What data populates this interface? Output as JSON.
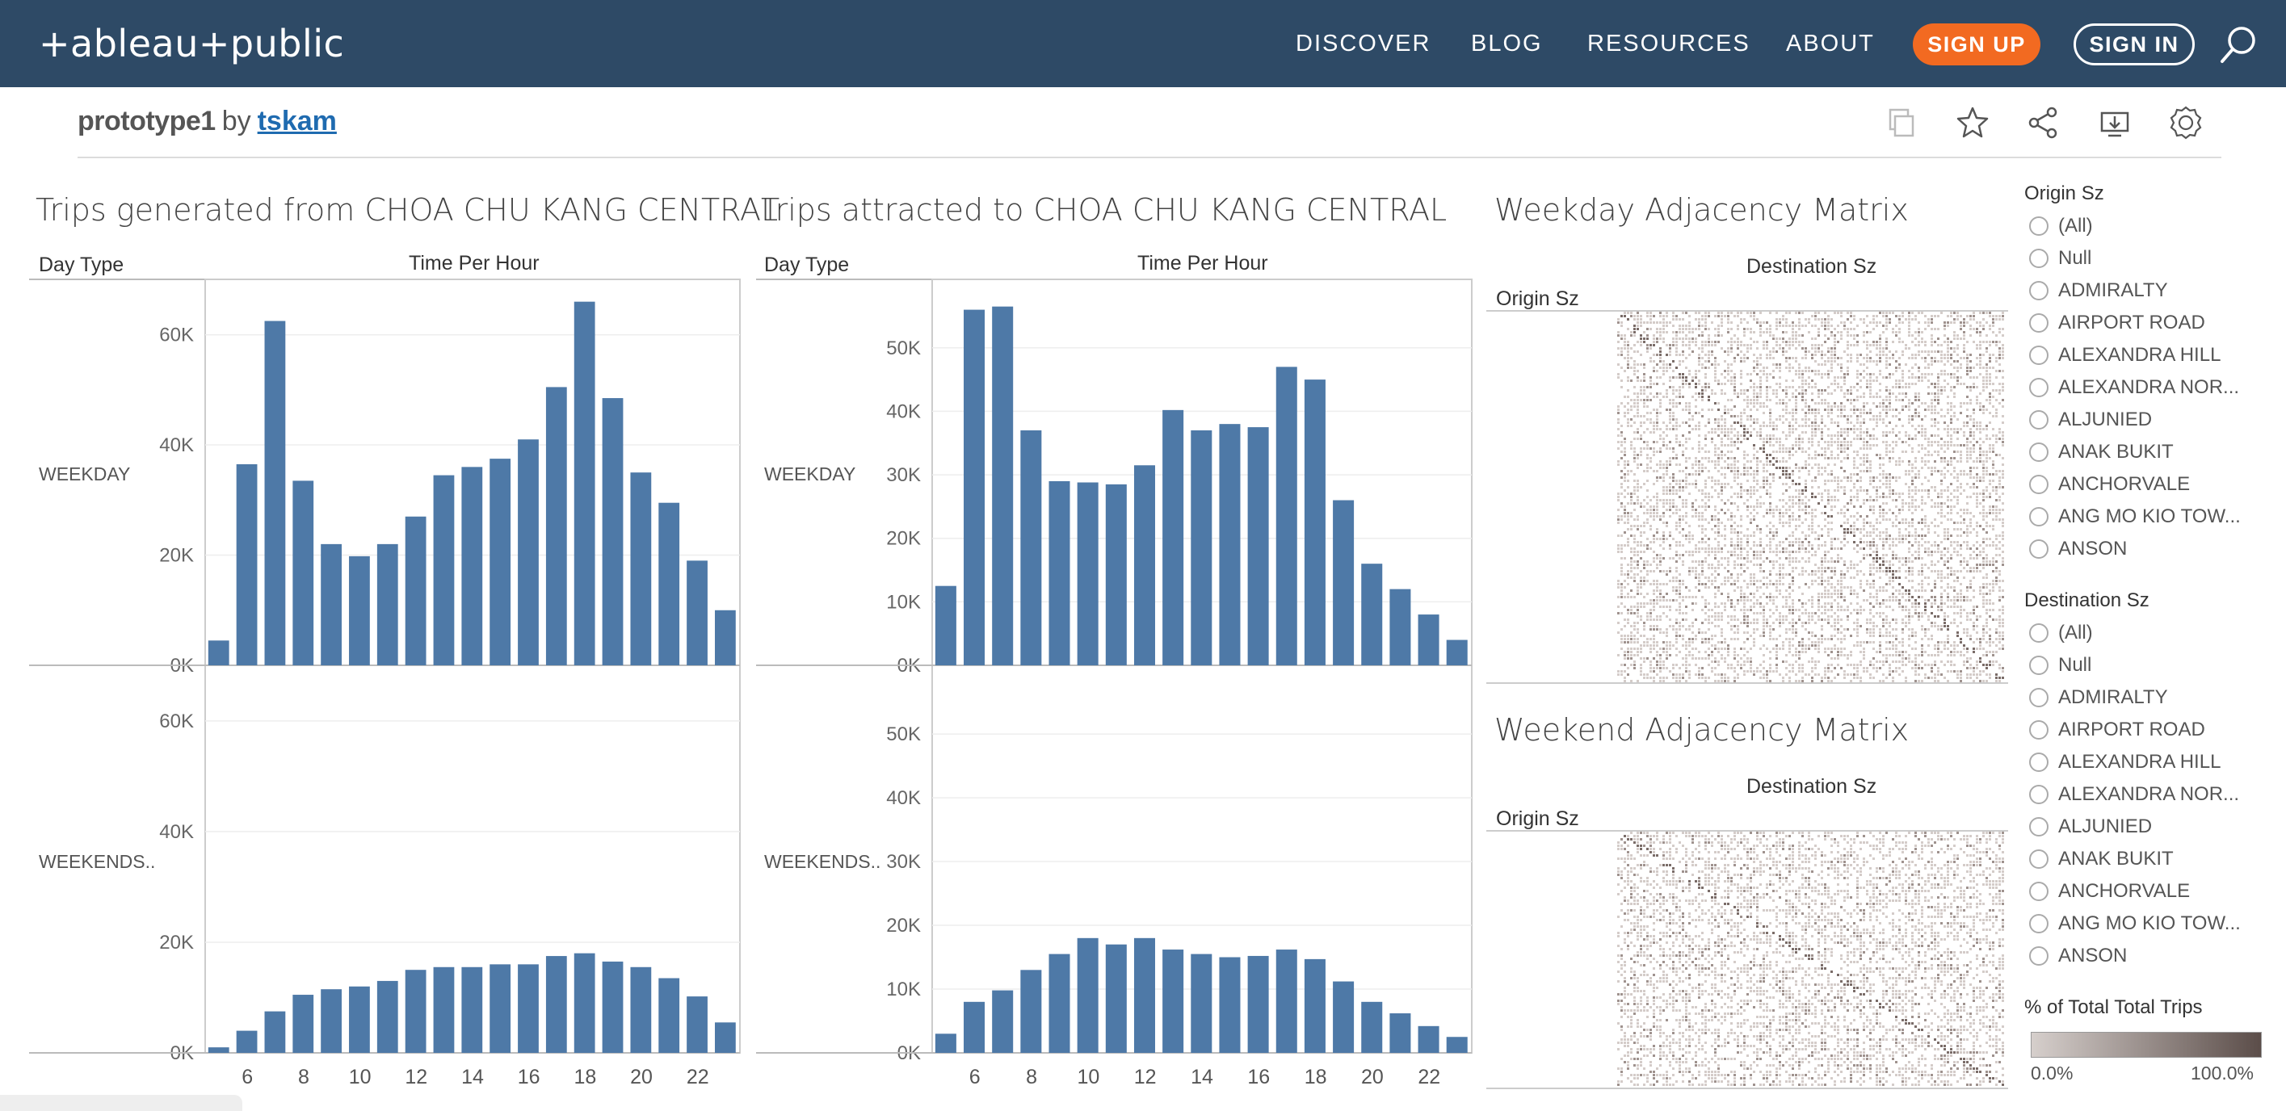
{
  "header": {
    "logo": "+ableau+public",
    "nav": [
      "DISCOVER",
      "BLOG",
      "RESOURCES",
      "ABOUT"
    ],
    "signup_label": "SIGN UP",
    "signin_label": "SIGN IN",
    "colors": {
      "bar_bg": "#2e4a66",
      "signup": "#f26a21"
    }
  },
  "viz": {
    "name": "prototype1",
    "by": "by",
    "author": "tskam"
  },
  "toolbar_icons": [
    "copy-icon",
    "star-icon",
    "share-icon",
    "download-icon",
    "badge-icon"
  ],
  "sheets": {
    "generated_title": "Trips generated from CHOA CHU KANG CENTRAL",
    "attracted_title": "Trips attracted to CHOA CHU KANG CENTRAL",
    "weekday_matrix_title": "Weekday Adjacency Matrix",
    "weekend_matrix_title": "Weekend Adjacency Matrix",
    "day_type_label": "Day Type",
    "time_label": "Time Per Hour",
    "destination_label": "Destination Sz",
    "origin_label": "Origin Sz",
    "weekday_row": "WEEKDAY",
    "weekend_row": "WEEKENDS.."
  },
  "chart_data": [
    {
      "type": "bar",
      "title": "Trips generated from CHOA CHU KANG CENTRAL",
      "xlabel": "Time Per Hour",
      "ylabel": "Day Type",
      "x": [
        5,
        6,
        7,
        8,
        9,
        10,
        11,
        12,
        13,
        14,
        15,
        16,
        17,
        18,
        19,
        20,
        21,
        22,
        23
      ],
      "x_ticks": [
        "6",
        "8",
        "10",
        "12",
        "14",
        "16",
        "18",
        "20",
        "22"
      ],
      "ylim": [
        0,
        68000
      ],
      "y_ticks": [
        "0K",
        "20K",
        "40K",
        "60K"
      ],
      "series": [
        {
          "name": "WEEKDAY",
          "values": [
            4500,
            36500,
            62500,
            33500,
            22000,
            19800,
            22000,
            27000,
            34500,
            36000,
            37500,
            41000,
            50500,
            66000,
            48500,
            35000,
            29500,
            19000,
            10000
          ]
        },
        {
          "name": "WEEKENDS..",
          "values": [
            1000,
            4000,
            7500,
            10500,
            11500,
            12000,
            13000,
            15000,
            15500,
            15500,
            16000,
            16000,
            17500,
            18000,
            16500,
            15500,
            13500,
            10200,
            5500
          ]
        }
      ],
      "color": "#4e79a7"
    },
    {
      "type": "bar",
      "title": "Trips attracted to CHOA CHU KANG CENTRAL",
      "xlabel": "Time Per Hour",
      "ylabel": "Day Type",
      "x": [
        5,
        6,
        7,
        8,
        9,
        10,
        11,
        12,
        13,
        14,
        15,
        16,
        17,
        18,
        19,
        20,
        21,
        22,
        23
      ],
      "x_ticks": [
        "6",
        "8",
        "10",
        "12",
        "14",
        "16",
        "18",
        "20",
        "22"
      ],
      "ylim": [
        0,
        59000
      ],
      "y_ticks": [
        "0K",
        "10K",
        "20K",
        "30K",
        "40K",
        "50K"
      ],
      "series": [
        {
          "name": "WEEKDAY",
          "values": [
            12500,
            56000,
            56500,
            37000,
            29000,
            28800,
            28500,
            31500,
            40200,
            37000,
            38000,
            37500,
            47000,
            45000,
            26000,
            16000,
            12000,
            8000,
            4000
          ]
        },
        {
          "name": "WEEKENDS..",
          "values": [
            3000,
            8000,
            9800,
            13000,
            15500,
            18000,
            17000,
            18000,
            16200,
            15500,
            15000,
            15200,
            16200,
            14700,
            11200,
            8000,
            6200,
            4200,
            2500
          ]
        }
      ],
      "color": "#4e79a7"
    }
  ],
  "filters": {
    "origin_title": "Origin Sz",
    "destination_title": "Destination Sz",
    "items": [
      "(All)",
      "Null",
      "ADMIRALTY",
      "AIRPORT ROAD",
      "ALEXANDRA HILL",
      "ALEXANDRA NOR...",
      "ALJUNIED",
      "ANAK BUKIT",
      "ANCHORVALE",
      "ANG MO KIO TOW...",
      "ANSON"
    ]
  },
  "legend": {
    "title": "% of Total Total Trips",
    "min": "0.0%",
    "max": "100.0%"
  }
}
